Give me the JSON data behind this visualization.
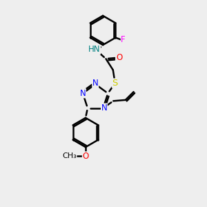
{
  "bg_color": "#eeeeee",
  "bond_color": "#000000",
  "bond_width": 1.8,
  "atom_colors": {
    "N": "#0000ff",
    "O": "#ff0000",
    "S": "#cccc00",
    "F": "#ff00ff",
    "NH": "#008080",
    "C": "#000000"
  },
  "font_size": 8.5,
  "fig_width": 3.0,
  "fig_height": 3.0,
  "dpi": 100
}
